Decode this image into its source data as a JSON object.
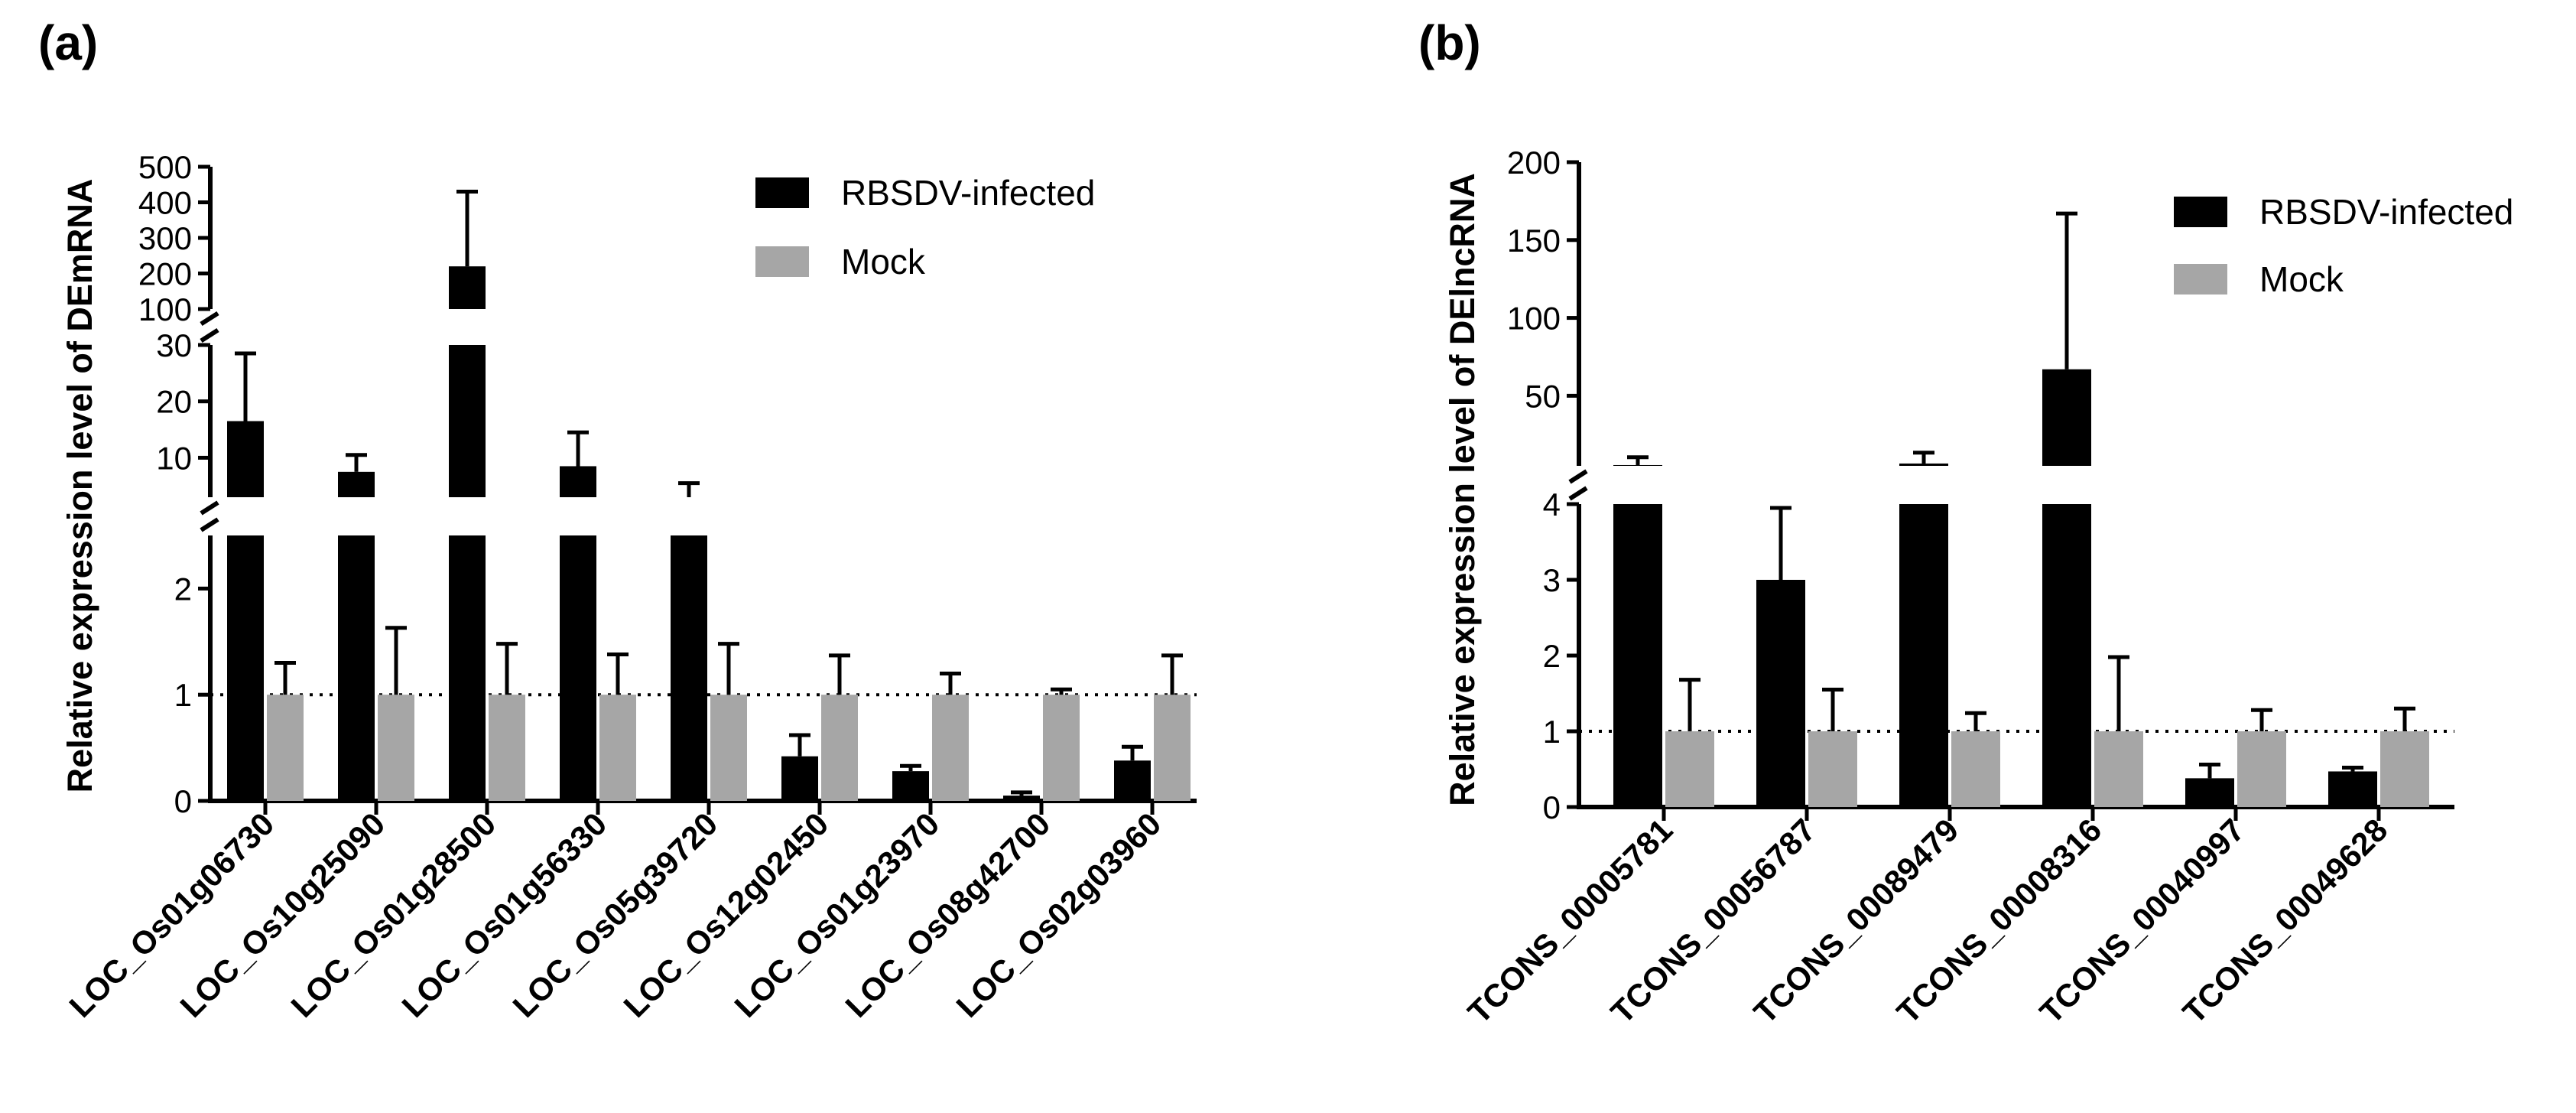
{
  "legend": {
    "infected_label": "RBSDV-infected",
    "mock_label": "Mock",
    "infected_color": "#000000",
    "mock_color": "#a6a6a6"
  },
  "chart_data": [
    {
      "panel_label": "(a)",
      "type": "bar",
      "ylabel": "Relative expression level of DEmRNA",
      "legend_position": "top-right",
      "reference_line": 1,
      "y_axis_segments": [
        {
          "range": [
            0,
            2.5
          ],
          "ticks": [
            0,
            1,
            2
          ],
          "tick_labels": [
            "0",
            "1",
            "2"
          ]
        },
        {
          "range": [
            3,
            30
          ],
          "ticks": [
            10,
            20,
            30
          ],
          "tick_labels": [
            "10",
            "20",
            "30"
          ]
        },
        {
          "range": [
            100,
            500
          ],
          "ticks": [
            100,
            200,
            300,
            400,
            500
          ],
          "tick_labels": [
            "100",
            "200",
            "300",
            "400",
            "500"
          ]
        }
      ],
      "categories": [
        "LOC_Os01g06730",
        "LOC_Os10g25090",
        "LOC_Os01g28500",
        "LOC_Os01g56330",
        "LOC_Os05g39720",
        "LOC_Os12g02450",
        "LOC_Os01g23970",
        "LOC_Os08g42700",
        "LOC_Os02g03960"
      ],
      "series": [
        {
          "name": "RBSDV-infected",
          "values": [
            16.5,
            7.5,
            220,
            8.5,
            3.0,
            0.42,
            0.28,
            0.05,
            0.38
          ],
          "errors": [
            12,
            3,
            210,
            6,
            2.5,
            0.2,
            0.05,
            0.03,
            0.13
          ]
        },
        {
          "name": "Mock",
          "values": [
            1,
            1,
            1,
            1,
            1,
            1,
            1,
            1,
            1
          ],
          "errors": [
            0.3,
            0.63,
            0.48,
            0.38,
            0.48,
            0.37,
            0.2,
            0.05,
            0.37
          ]
        }
      ]
    },
    {
      "panel_label": "(b)",
      "type": "bar",
      "ylabel": "Relative expression level of DElncRNA",
      "legend_position": "top-right",
      "reference_line": 1,
      "y_axis_segments": [
        {
          "range": [
            0,
            4
          ],
          "ticks": [
            0,
            1,
            2,
            3,
            4
          ],
          "tick_labels": [
            "0",
            "1",
            "2",
            "3",
            "4"
          ]
        },
        {
          "range": [
            5,
            200
          ],
          "ticks": [
            50,
            100,
            150,
            200
          ],
          "tick_labels": [
            "50",
            "100",
            "150",
            "200"
          ]
        }
      ],
      "categories": [
        "TCONS_00005781",
        "TCONS_00056787",
        "TCONS_00089479",
        "TCONS_00008316",
        "TCONS_00040997",
        "TCONS_00049628"
      ],
      "series": [
        {
          "name": "RBSDV-infected",
          "values": [
            5.5,
            3.0,
            6.5,
            67,
            0.38,
            0.47
          ],
          "errors": [
            5,
            0.95,
            7,
            100,
            0.18,
            0.05
          ]
        },
        {
          "name": "Mock",
          "values": [
            1,
            1,
            1,
            1,
            1,
            1
          ],
          "errors": [
            0.68,
            0.55,
            0.24,
            0.98,
            0.28,
            0.3
          ]
        }
      ]
    }
  ]
}
